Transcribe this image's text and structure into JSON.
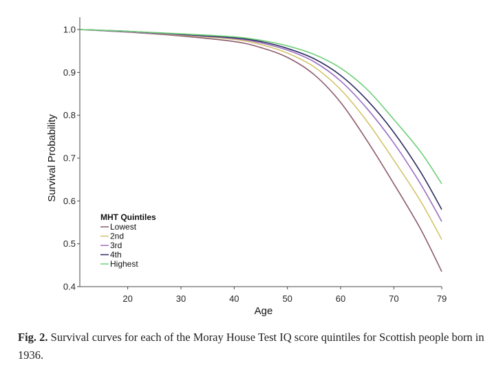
{
  "chart_data": {
    "type": "line",
    "xlabel": "Age",
    "ylabel": "Survival Probability",
    "xlim": [
      11,
      79
    ],
    "ylim": [
      0.4,
      1.0
    ],
    "x_ticks": [
      20,
      30,
      40,
      50,
      60,
      70,
      79
    ],
    "x_tick_labels": [
      "20",
      "30",
      "40",
      "50",
      "60",
      "70",
      "79"
    ],
    "y_ticks": [
      0.4,
      0.5,
      0.6,
      0.7,
      0.8,
      0.9,
      1.0
    ],
    "y_tick_labels": [
      "0.4",
      "0.5",
      "0.6",
      "0.7",
      "0.8",
      "0.9",
      "1.0"
    ],
    "grid": false,
    "legend": {
      "title": "MHT Quintiles",
      "placement": "bottom-left"
    },
    "x": [
      11,
      20,
      30,
      40,
      45,
      50,
      55,
      60,
      65,
      70,
      75,
      79
    ],
    "series": [
      {
        "name": "Lowest",
        "color": "#8b5a6e",
        "values": [
          1.0,
          0.994,
          0.985,
          0.972,
          0.958,
          0.935,
          0.895,
          0.83,
          0.74,
          0.64,
          0.535,
          0.435
        ]
      },
      {
        "name": "2nd",
        "color": "#d2c46a",
        "values": [
          1.0,
          0.995,
          0.987,
          0.977,
          0.965,
          0.945,
          0.913,
          0.86,
          0.785,
          0.695,
          0.6,
          0.51
        ]
      },
      {
        "name": "3rd",
        "color": "#9a6ec0",
        "values": [
          1.0,
          0.995,
          0.988,
          0.979,
          0.969,
          0.952,
          0.925,
          0.88,
          0.815,
          0.735,
          0.64,
          0.552
        ]
      },
      {
        "name": "4th",
        "color": "#2a2a5e",
        "values": [
          1.0,
          0.996,
          0.989,
          0.981,
          0.972,
          0.956,
          0.932,
          0.893,
          0.835,
          0.76,
          0.668,
          0.58
        ]
      },
      {
        "name": "Highest",
        "color": "#6ed077",
        "values": [
          1.0,
          0.996,
          0.99,
          0.983,
          0.975,
          0.962,
          0.942,
          0.91,
          0.86,
          0.79,
          0.715,
          0.64
        ]
      }
    ]
  },
  "caption": {
    "label": "Fig. 2.",
    "text": "Survival curves for each of the Moray House Test IQ score quintiles for Scottish people born in 1936."
  }
}
